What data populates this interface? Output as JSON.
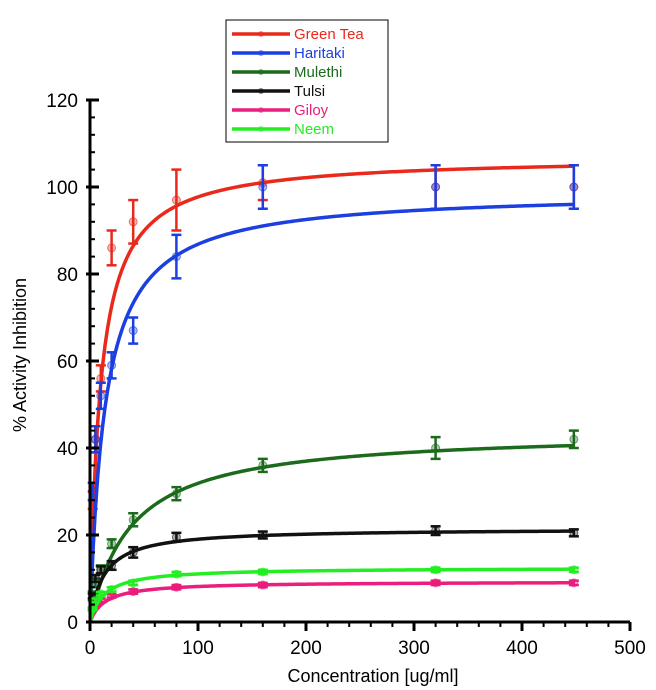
{
  "chart_data": {
    "type": "scatter",
    "title": "",
    "xlabel": "Concentration [ug/ml]",
    "ylabel": "% Activity Inhibition",
    "xlim": [
      0,
      500
    ],
    "ylim": [
      0,
      120
    ],
    "x_ticks": [
      0,
      100,
      200,
      300,
      400,
      500
    ],
    "y_ticks": [
      0,
      20,
      40,
      60,
      80,
      100,
      120
    ],
    "grid": false,
    "legend_position": "top-center",
    "series": [
      {
        "name": "Green Tea",
        "color": "#e8291c",
        "x": [
          2.5,
          5,
          10,
          20,
          40,
          80,
          160,
          320,
          448
        ],
        "y": [
          28,
          42,
          56,
          86,
          92,
          97,
          101,
          100,
          100
        ],
        "err": [
          2,
          3,
          3,
          4,
          5,
          7,
          4,
          5,
          5
        ],
        "fit": {
          "vmax": 107,
          "k": 9.5
        }
      },
      {
        "name": "Haritaki",
        "color": "#1b3fe0",
        "x": [
          2.5,
          5,
          10,
          20,
          40,
          80,
          160,
          320,
          448
        ],
        "y": [
          30,
          42,
          52,
          59,
          67,
          84,
          100,
          100,
          100
        ],
        "err": [
          2,
          3,
          3,
          3,
          3,
          5,
          5,
          5,
          5
        ],
        "fit": {
          "vmax": 99,
          "k": 14
        }
      },
      {
        "name": "Mulethi",
        "color": "#1c6b1c",
        "x": [
          2.5,
          5,
          10,
          20,
          40,
          80,
          160,
          320,
          448
        ],
        "y": [
          6,
          9,
          12,
          18,
          23.5,
          29.5,
          36,
          40,
          42
        ],
        "err": [
          1,
          1,
          1,
          1,
          1.5,
          1.5,
          1.5,
          2.5,
          2
        ],
        "fit": {
          "vmax": 44,
          "k": 38
        }
      },
      {
        "name": "Tulsi",
        "color": "#111111",
        "x": [
          2.5,
          5,
          10,
          20,
          40,
          80,
          160,
          320,
          448
        ],
        "y": [
          6,
          10,
          12,
          13,
          16,
          19.5,
          20,
          21,
          20.5
        ],
        "err": [
          0.5,
          0.8,
          0.8,
          1,
          1.2,
          1,
          0.8,
          1,
          0.8
        ],
        "fit": {
          "vmax": 21.5,
          "k": 13
        }
      },
      {
        "name": "Giloy",
        "color": "#e91e7d",
        "x": [
          2.5,
          5,
          10,
          20,
          40,
          80,
          160,
          320,
          448
        ],
        "y": [
          3,
          4,
          5,
          6,
          7,
          8,
          8.5,
          9,
          9
        ],
        "err": [
          0.3,
          0.3,
          0.4,
          0.4,
          0.5,
          0.5,
          0.5,
          0.5,
          0.5
        ],
        "fit": {
          "vmax": 9.3,
          "k": 14
        }
      },
      {
        "name": "Neem",
        "color": "#22ee22",
        "x": [
          2.5,
          5,
          10,
          20,
          40,
          80,
          160,
          320,
          448
        ],
        "y": [
          3,
          5,
          6.5,
          7.5,
          9,
          11,
          11.5,
          12,
          12
        ],
        "err": [
          0.3,
          0.4,
          0.4,
          0.5,
          0.5,
          0.5,
          0.5,
          0.5,
          0.5
        ],
        "fit": {
          "vmax": 12.5,
          "k": 13
        }
      }
    ]
  }
}
